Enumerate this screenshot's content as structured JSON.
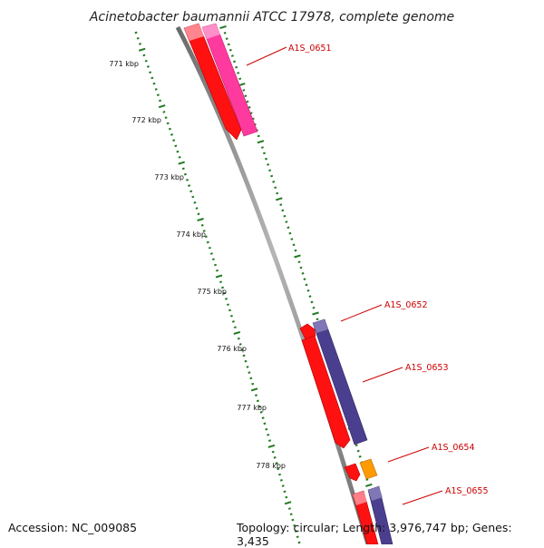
{
  "title": "Acinetobacter baumannii ATCC 17978, complete genome",
  "accession": "Accession: NC_009085",
  "summary": "Topology: circular; Length: 3,976,747 bp; Genes: 3,435",
  "colors": {
    "backbone": "#8c8c8c",
    "scale_ticks": "#1f7a1f",
    "gene_red": "#ff1111",
    "gene_pink": "#ff3a9e",
    "gene_purple": "#4a3f8e",
    "gene_orange": "#ff9a00",
    "label_text": "#cc0000"
  },
  "scale_ticks": [
    {
      "label": "771 kbp"
    },
    {
      "label": "772 kbp"
    },
    {
      "label": "773 kbp"
    },
    {
      "label": "774 kbp"
    },
    {
      "label": "775 kbp"
    },
    {
      "label": "776 kbp"
    },
    {
      "label": "777 kbp"
    },
    {
      "label": "778 kbp"
    }
  ],
  "gene_labels": [
    {
      "label": "A1S_0651"
    },
    {
      "label": "A1S_0652"
    },
    {
      "label": "A1S_0653"
    },
    {
      "label": "A1S_0654"
    },
    {
      "label": "A1S_0655"
    }
  ]
}
